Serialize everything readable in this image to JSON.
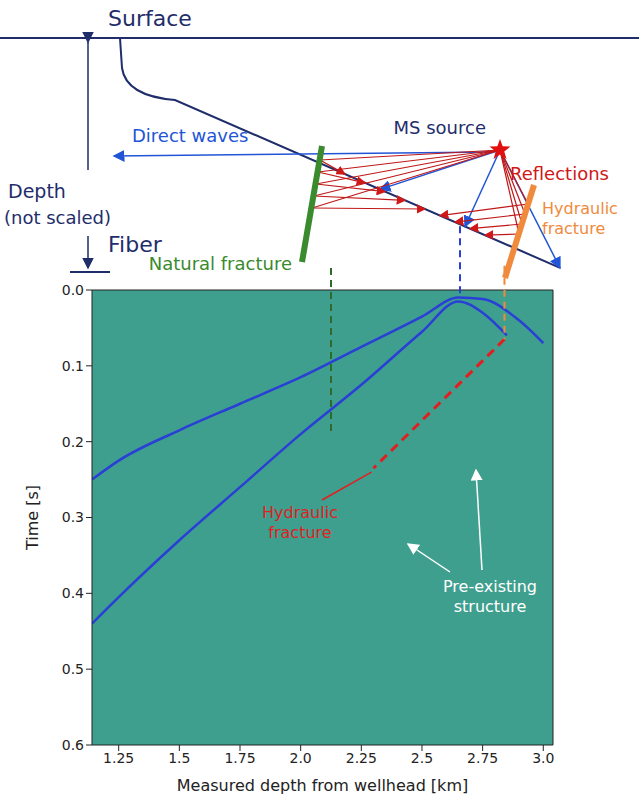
{
  "diagram": {
    "surface": "Surface",
    "depth_label": "Depth",
    "depth_note": "(not scaled)",
    "fiber": "Fiber",
    "direct_waves": "Direct waves",
    "ms_source": "MS source",
    "reflections": "Reflections",
    "natural_fracture": "Natural fracture",
    "hydraulic_fracture": [
      "Hydraulic",
      "fracture"
    ]
  },
  "chart_data": {
    "type": "line",
    "x_label": "Measured depth from wellhead [km]",
    "y_label": "Time [s]",
    "xlim": [
      1.14,
      3.04
    ],
    "ylim": [
      0,
      0.6
    ],
    "xticks": [
      1.25,
      1.5,
      1.75,
      {
        "value": 2.0,
        "label": "2.0"
      },
      2.25,
      2.5,
      2.75,
      {
        "value": 3.0,
        "label": "3.0"
      }
    ],
    "yticks": [
      {
        "value": 0,
        "label": "0.0"
      },
      0.1,
      0.2,
      0.3,
      0.4,
      0.5,
      0.6
    ],
    "series": [
      {
        "color": "#2a3fd6",
        "line_style": "solid",
        "x": [
          1.14,
          1.25,
          1.5,
          1.75,
          2.0,
          2.25,
          2.5,
          2.65,
          2.75,
          2.9,
          3.0
        ],
        "values": [
          0.25,
          0.225,
          0.185,
          0.15,
          0.115,
          0.075,
          0.035,
          0.01,
          0.012,
          0.04,
          0.07
        ]
      },
      {
        "color": "#2a3fd6",
        "line_style": "solid",
        "x": [
          1.14,
          1.25,
          1.5,
          1.75,
          2.0,
          2.25,
          2.5,
          2.65,
          2.75,
          2.85
        ],
        "values": [
          0.44,
          0.405,
          0.33,
          0.26,
          0.19,
          0.125,
          0.055,
          0.015,
          0.03,
          0.06
        ]
      },
      {
        "color": "#e02020",
        "line_style": "dashed",
        "x": [
          2.84,
          2.3
        ],
        "values": [
          0.065,
          0.235
        ]
      }
    ],
    "annotations": [
      {
        "text": [
          "Hydraulic",
          "fracture"
        ],
        "color": "#e02020"
      },
      {
        "text": [
          "Pre-existing",
          "structure"
        ],
        "color": "#ffffff"
      }
    ]
  }
}
